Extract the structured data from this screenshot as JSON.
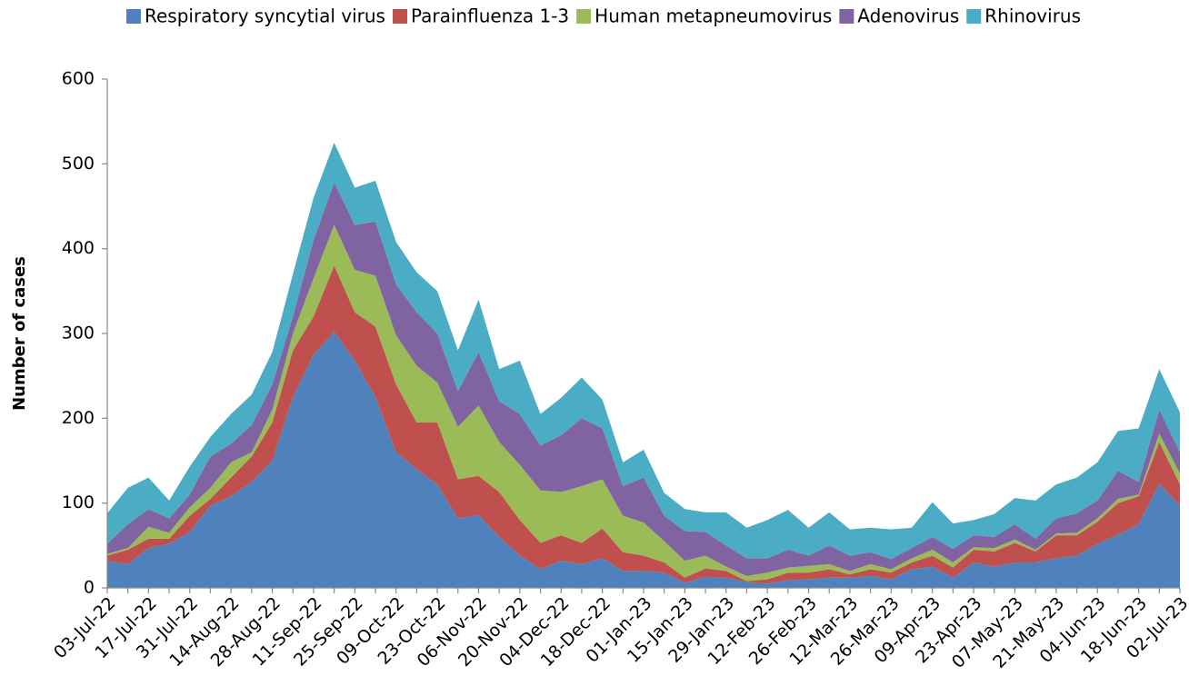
{
  "chart_data": {
    "type": "stacked_area",
    "y_label": "Number of cases",
    "categories": [
      "03-Jul-22",
      null,
      "17-Jul-22",
      null,
      "31-Jul-22",
      null,
      "14-Aug-22",
      null,
      "28-Aug-22",
      null,
      "11-Sep-22",
      null,
      "25-Sep-22",
      null,
      "09-Oct-22",
      null,
      "23-Oct-22",
      null,
      "06-Nov-22",
      null,
      "20-Nov-22",
      null,
      "04-Dec-22",
      null,
      "18-Dec-22",
      null,
      "01-Jan-23",
      null,
      "15-Jan-23",
      null,
      "29-Jan-23",
      null,
      "12-Feb-23",
      null,
      "26-Feb-23",
      null,
      "12-Mar-23",
      null,
      "26-Mar-23",
      null,
      "09-Apr-23",
      null,
      "23-Apr-23",
      null,
      "07-May-23",
      null,
      "21-May-23",
      null,
      "04-Jun-23",
      null,
      "18-Jun-23",
      null,
      "02-Jul-23"
    ],
    "series": [
      {
        "name": "Respiratory syncytial virus",
        "color": "#4f81bd",
        "values": [
          32,
          28,
          47,
          52,
          66,
          97,
          108,
          125,
          150,
          225,
          275,
          302,
          268,
          225,
          160,
          140,
          122,
          82,
          86,
          60,
          38,
          22,
          32,
          28,
          35,
          20,
          20,
          18,
          6,
          13,
          12,
          7,
          5,
          9,
          10,
          12,
          12,
          14,
          10,
          22,
          25,
          12,
          30,
          25,
          30,
          30,
          35,
          38,
          52,
          63,
          75,
          123,
          97
        ]
      },
      {
        "name": "Parainfluenza 1-3",
        "color": "#c0504d",
        "values": [
          6,
          17,
          11,
          6,
          19,
          8,
          22,
          30,
          45,
          55,
          45,
          78,
          57,
          83,
          80,
          55,
          73,
          46,
          46,
          53,
          42,
          31,
          30,
          25,
          35,
          22,
          18,
          12,
          6,
          10,
          8,
          1,
          5,
          9,
          8,
          10,
          4,
          8,
          8,
          8,
          13,
          12,
          15,
          18,
          23,
          13,
          27,
          24,
          26,
          37,
          33,
          49,
          25
        ]
      },
      {
        "name": "Human metapneumovirus",
        "color": "#9bbb59",
        "values": [
          2,
          2,
          14,
          7,
          10,
          13,
          18,
          5,
          15,
          20,
          45,
          48,
          50,
          60,
          58,
          67,
          47,
          62,
          83,
          59,
          65,
          62,
          51,
          67,
          58,
          43,
          39,
          25,
          20,
          15,
          5,
          6,
          8,
          6,
          8,
          6,
          4,
          6,
          4,
          5,
          7,
          6,
          3,
          4,
          4,
          2,
          2,
          3,
          4,
          5,
          2,
          10,
          13
        ]
      },
      {
        "name": "Adenovirus",
        "color": "#8064a2",
        "values": [
          12,
          28,
          21,
          17,
          15,
          37,
          22,
          32,
          30,
          20,
          45,
          50,
          53,
          64,
          60,
          63,
          58,
          42,
          63,
          48,
          60,
          53,
          67,
          80,
          60,
          35,
          53,
          30,
          35,
          28,
          25,
          21,
          17,
          21,
          12,
          22,
          18,
          14,
          12,
          12,
          15,
          16,
          14,
          13,
          18,
          13,
          18,
          23,
          21,
          33,
          15,
          28,
          25
        ]
      },
      {
        "name": "Rhinovirus",
        "color": "#4bacc6",
        "values": [
          36,
          43,
          37,
          21,
          33,
          23,
          35,
          36,
          38,
          50,
          50,
          47,
          44,
          48,
          50,
          47,
          50,
          48,
          62,
          38,
          63,
          37,
          44,
          48,
          34,
          28,
          33,
          27,
          26,
          23,
          39,
          36,
          45,
          47,
          33,
          39,
          31,
          29,
          35,
          24,
          41,
          30,
          18,
          27,
          31,
          45,
          40,
          42,
          45,
          47,
          63,
          48,
          47
        ]
      }
    ],
    "ylim": [
      0,
      600
    ],
    "yticks": [
      0,
      100,
      200,
      300,
      400,
      500,
      600
    ],
    "grid": false,
    "legend": "top"
  }
}
